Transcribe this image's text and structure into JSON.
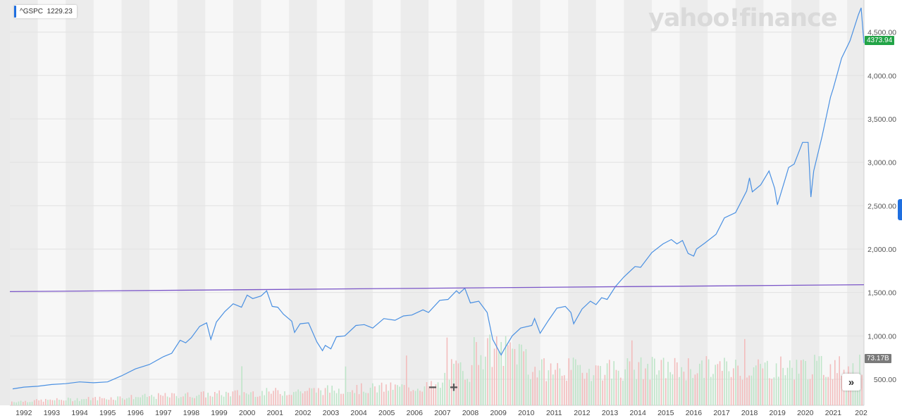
{
  "legend": {
    "symbol": "^GSPC",
    "value": "1229.23",
    "color": "#1f6fe0"
  },
  "logo": {
    "text": "yahoo!finance"
  },
  "controls": {
    "zoom_out": "−",
    "zoom_in": "+",
    "forward": "»"
  },
  "price_tag": {
    "text": "4373.94",
    "color": "#22a447"
  },
  "volume_tag": {
    "text": "73.17B",
    "color": "#7a7a7a"
  },
  "chart_data": {
    "type": "line",
    "title": "",
    "xlabel": "",
    "ylabel": "",
    "x_ticks": [
      "1992",
      "1993",
      "1994",
      "1995",
      "1996",
      "1997",
      "1998",
      "1999",
      "2000",
      "2001",
      "2002",
      "2003",
      "2004",
      "2005",
      "2006",
      "2007",
      "2008",
      "2009",
      "2010",
      "2011",
      "2012",
      "2013",
      "2014",
      "2015",
      "2016",
      "2017",
      "2018",
      "2019",
      "2020",
      "2021",
      "202"
    ],
    "y_ticks": [
      "500.00",
      "1,000.00",
      "1,500.00",
      "2,000.00",
      "2,500.00",
      "3,000.00",
      "3,500.00",
      "4,000.00",
      "4,500.00"
    ],
    "x_range": [
      1991.5,
      2022.1
    ],
    "ylim": [
      200,
      4870
    ],
    "grid": true,
    "series": [
      {
        "color": "#4a90e2",
        "x": [
          1991.6,
          1992.0,
          1992.5,
          1993.0,
          1993.5,
          1994.0,
          1994.5,
          1995.0,
          1995.5,
          1996.0,
          1996.5,
          1997.0,
          1997.3,
          1997.6,
          1997.8,
          1998.0,
          1998.3,
          1998.55,
          1998.7,
          1998.9,
          1999.2,
          1999.5,
          1999.8,
          2000.0,
          2000.2,
          2000.5,
          2000.7,
          2000.9,
          2001.1,
          2001.3,
          2001.6,
          2001.7,
          2001.9,
          2002.2,
          2002.5,
          2002.7,
          2002.8,
          2003.0,
          2003.2,
          2003.5,
          2003.9,
          2004.2,
          2004.5,
          2004.9,
          2005.3,
          2005.6,
          2005.9,
          2006.3,
          2006.5,
          2006.9,
          2007.2,
          2007.5,
          2007.6,
          2007.8,
          2008.0,
          2008.3,
          2008.6,
          2008.8,
          2008.9,
          2009.1,
          2009.2,
          2009.5,
          2009.8,
          2010.2,
          2010.3,
          2010.5,
          2010.8,
          2011.1,
          2011.4,
          2011.6,
          2011.7,
          2012.0,
          2012.3,
          2012.5,
          2012.7,
          2012.9,
          2013.2,
          2013.5,
          2013.9,
          2014.1,
          2014.5,
          2014.9,
          2015.2,
          2015.4,
          2015.6,
          2015.8,
          2016.0,
          2016.1,
          2016.4,
          2016.8,
          2017.1,
          2017.5,
          2017.9,
          2018.0,
          2018.1,
          2018.4,
          2018.7,
          2018.9,
          2019.0,
          2019.3,
          2019.4,
          2019.6,
          2019.9,
          2020.1,
          2020.2,
          2020.3,
          2020.6,
          2020.9,
          2021.0,
          2021.3,
          2021.6,
          2021.9,
          2022.0,
          2022.1
        ],
        "y": [
          390,
          410,
          420,
          440,
          450,
          470,
          460,
          470,
          540,
          620,
          670,
          760,
          800,
          950,
          920,
          980,
          1110,
          1150,
          960,
          1160,
          1280,
          1370,
          1330,
          1470,
          1430,
          1460,
          1520,
          1340,
          1330,
          1250,
          1170,
          1040,
          1140,
          1150,
          930,
          830,
          890,
          850,
          990,
          1000,
          1120,
          1130,
          1090,
          1200,
          1180,
          1230,
          1240,
          1300,
          1270,
          1410,
          1420,
          1520,
          1490,
          1550,
          1380,
          1400,
          1270,
          960,
          900,
          780,
          840,
          1000,
          1090,
          1120,
          1200,
          1030,
          1180,
          1320,
          1340,
          1270,
          1140,
          1310,
          1400,
          1360,
          1440,
          1420,
          1570,
          1680,
          1800,
          1790,
          1960,
          2060,
          2110,
          2060,
          2100,
          1950,
          1920,
          2000,
          2070,
          2170,
          2360,
          2420,
          2670,
          2820,
          2660,
          2740,
          2900,
          2700,
          2510,
          2830,
          2940,
          2980,
          3230,
          3230,
          2600,
          2900,
          3300,
          3750,
          3850,
          4200,
          4400,
          4700,
          4780,
          4374
        ]
      },
      {
        "color": "#7b56c8",
        "x": [
          1991.5,
          2022.1
        ],
        "y": [
          1510,
          1590
        ]
      }
    ]
  }
}
